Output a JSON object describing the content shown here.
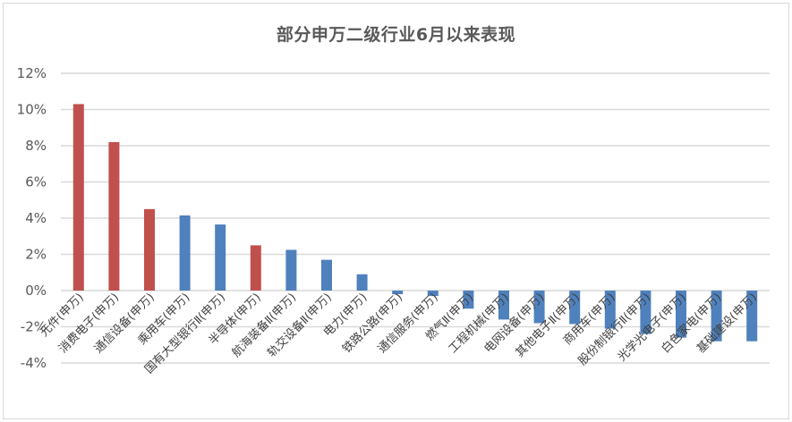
{
  "chart_data": {
    "type": "bar",
    "title": "部分申万二级行业6月以来表现",
    "xlabel": "",
    "ylabel": "",
    "ylim": [
      -4,
      12
    ],
    "yticks": [
      "12%",
      "10%",
      "8%",
      "6%",
      "4%",
      "2%",
      "0%",
      "-2%",
      "-4%"
    ],
    "grid": true,
    "legend": null,
    "unit": "%",
    "categories": [
      "元件(申万)",
      "消费电子(申万)",
      "通信设备(申万)",
      "乘用车(申万)",
      "国有大型银行Ⅱ(申万)",
      "半导体(申万)",
      "航海装备Ⅱ(申万)",
      "轨交设备Ⅱ(申万)",
      "电力(申万)",
      "铁路公路(申万)",
      "通信服务(申万)",
      "燃气Ⅱ(申万)",
      "工程机械(申万)",
      "电网设备(申万)",
      "其他电子Ⅱ(申万)",
      "商用车(申万)",
      "股份制银行Ⅱ(申万)",
      "光学光电子(申万)",
      "白色家电(申万)",
      "基础建设(申万)"
    ],
    "values": [
      10.3,
      8.2,
      4.5,
      4.15,
      3.65,
      2.5,
      2.25,
      1.7,
      0.9,
      -0.2,
      -0.3,
      -1.0,
      -1.6,
      -1.8,
      -1.85,
      -2.1,
      -2.4,
      -2.6,
      -2.8,
      -2.8
    ],
    "highlight": [
      true,
      true,
      true,
      false,
      false,
      true,
      false,
      false,
      false,
      false,
      false,
      false,
      false,
      false,
      false,
      false,
      false,
      false,
      false,
      false
    ],
    "colors": {
      "highlight": "#c0504d",
      "default": "#4f81bd",
      "grid": "#d9d9d9",
      "text": "#595959"
    }
  }
}
